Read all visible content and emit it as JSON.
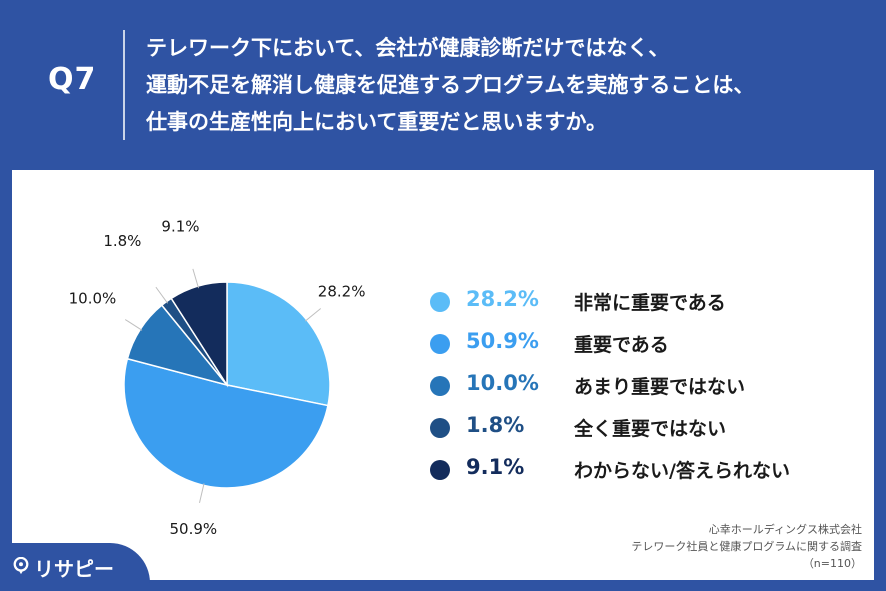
{
  "header": {
    "question_number": "Q7",
    "question_lines": [
      "テレワーク下において、会社が健康診断だけではなく、",
      "運動不足を解消し健康を促進するプログラムを実施することは、",
      "仕事の生産性向上において重要だと思いますか。"
    ]
  },
  "chart_data": {
    "type": "pie",
    "categories": [
      "非常に重要である",
      "重要である",
      "あまり重要ではない",
      "全く重要ではない",
      "わからない/答えられない"
    ],
    "values": [
      28.2,
      50.9,
      10.0,
      1.8,
      9.1
    ],
    "labels": [
      "28.2%",
      "50.9%",
      "10.0%",
      "1.8%",
      "9.1%"
    ],
    "colors": [
      "#5bbcf7",
      "#3b9ef0",
      "#2675b8",
      "#1f4f85",
      "#132c5c"
    ],
    "start": "12 o'clock, clockwise",
    "legend_position": "right"
  },
  "source": {
    "company": "心幸ホールディングス株式会社",
    "survey": "テレワーク社員と健康プログラムに関する調査",
    "sample": "（n=110）"
  },
  "brand": {
    "name": "リサピー",
    "pin_icon": "map-pin-icon"
  }
}
